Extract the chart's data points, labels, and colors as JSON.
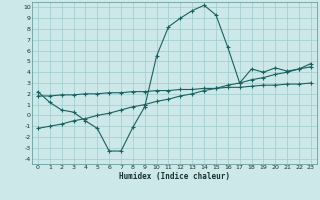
{
  "title": "",
  "xlabel": "Humidex (Indice chaleur)",
  "bg_color": "#cce8e8",
  "grid_color": "#a0cccc",
  "line_color": "#1a6060",
  "xlim": [
    -0.5,
    23.5
  ],
  "ylim": [
    -4.5,
    10.5
  ],
  "xticks": [
    0,
    1,
    2,
    3,
    4,
    5,
    6,
    7,
    8,
    9,
    10,
    11,
    12,
    13,
    14,
    15,
    16,
    17,
    18,
    19,
    20,
    21,
    22,
    23
  ],
  "yticks": [
    -4,
    -3,
    -2,
    -1,
    0,
    1,
    2,
    3,
    4,
    5,
    6,
    7,
    8,
    9,
    10
  ],
  "curve1_x": [
    0,
    1,
    2,
    3,
    4,
    5,
    6,
    7,
    8,
    9,
    10,
    11,
    12,
    13,
    14,
    15,
    16,
    17,
    18,
    19,
    20,
    21,
    22,
    23
  ],
  "curve1_y": [
    2.2,
    1.2,
    0.5,
    0.3,
    -0.5,
    -1.2,
    -3.3,
    -3.3,
    -1.1,
    0.8,
    5.5,
    8.2,
    9.0,
    9.7,
    10.2,
    9.3,
    6.3,
    3.0,
    4.3,
    4.0,
    4.4,
    4.1,
    4.3,
    4.8
  ],
  "curve2_x": [
    0,
    1,
    2,
    3,
    4,
    5,
    6,
    7,
    8,
    9,
    10,
    11,
    12,
    13,
    14,
    15,
    16,
    17,
    18,
    19,
    20,
    21,
    22,
    23
  ],
  "curve2_y": [
    1.8,
    1.8,
    1.9,
    1.9,
    2.0,
    2.0,
    2.1,
    2.1,
    2.2,
    2.2,
    2.3,
    2.3,
    2.4,
    2.4,
    2.5,
    2.5,
    2.6,
    2.6,
    2.7,
    2.8,
    2.8,
    2.9,
    2.9,
    3.0
  ],
  "curve3_x": [
    0,
    1,
    2,
    3,
    4,
    5,
    6,
    7,
    8,
    9,
    10,
    11,
    12,
    13,
    14,
    15,
    16,
    17,
    18,
    19,
    20,
    21,
    22,
    23
  ],
  "curve3_y": [
    -1.2,
    -1.0,
    -0.8,
    -0.5,
    -0.3,
    -0.0,
    0.2,
    0.5,
    0.8,
    1.0,
    1.3,
    1.5,
    1.8,
    2.0,
    2.3,
    2.5,
    2.8,
    3.0,
    3.3,
    3.5,
    3.8,
    4.0,
    4.3,
    4.5
  ]
}
